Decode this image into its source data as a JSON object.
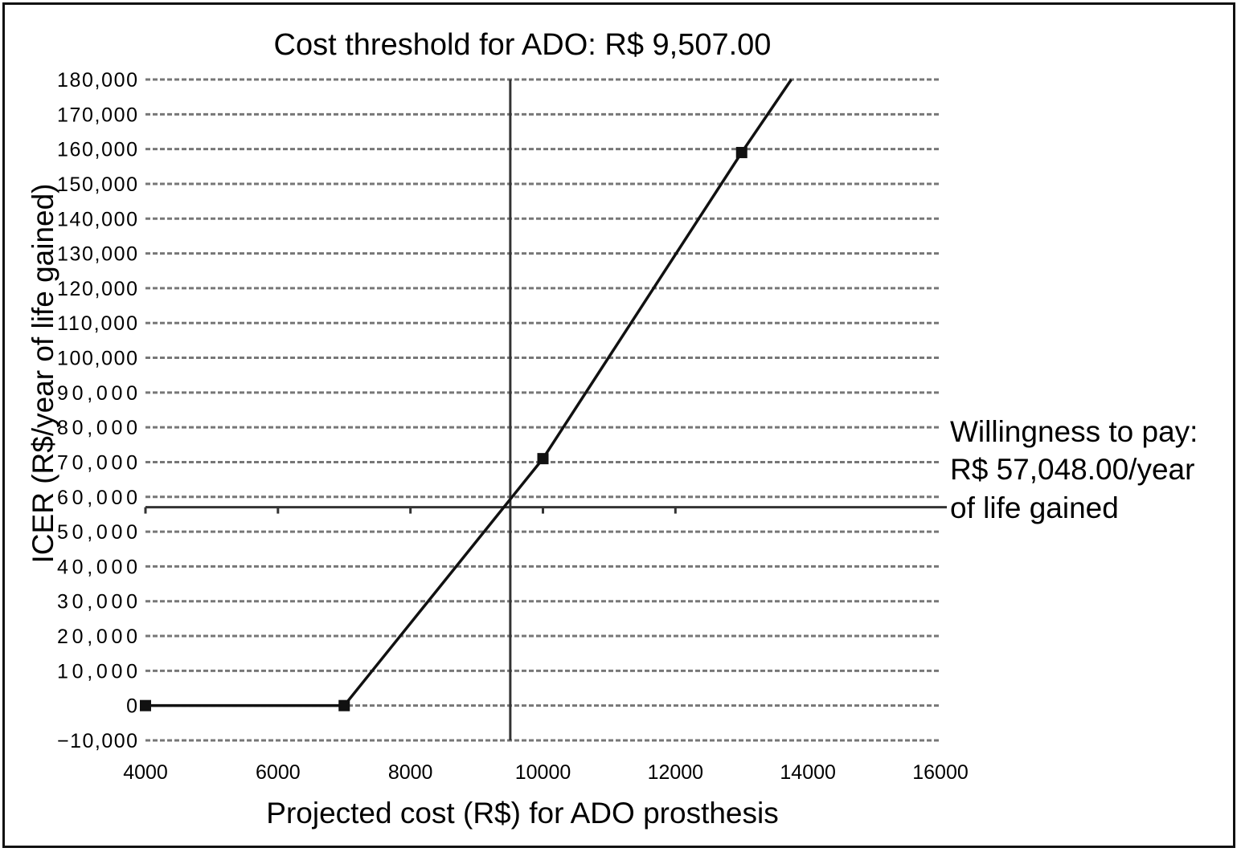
{
  "chart_data": {
    "type": "line",
    "title": "Cost threshold for ADO: R$ 9,507.00",
    "xlabel": "Projected cost (R$) for ADO prosthesis",
    "ylabel": "ICER (R$/year of life gained)",
    "xlim": [
      4000,
      16000
    ],
    "ylim": [
      -10000,
      180000
    ],
    "x_ticks": [
      "4000",
      "6000",
      "8000",
      "10000",
      "12000",
      "14000",
      "16000"
    ],
    "x_tick_values": [
      4000,
      6000,
      8000,
      10000,
      12000,
      14000,
      16000
    ],
    "y_ticks": [
      "180,000",
      "170,000",
      "160,000",
      "150,000",
      "140,000",
      "130,000",
      "120,000",
      "110,000",
      "100,000",
      "90,000",
      "80,000",
      "70,000",
      "60,000",
      "50,000",
      "40,000",
      "30,000",
      "20,000",
      "10,000",
      "0",
      "−10,000"
    ],
    "y_tick_values": [
      180000,
      170000,
      160000,
      150000,
      140000,
      130000,
      120000,
      110000,
      100000,
      90000,
      80000,
      70000,
      60000,
      50000,
      40000,
      30000,
      20000,
      10000,
      0,
      -10000
    ],
    "grid": "horizontal dashed",
    "series": [
      {
        "x": [
          4000,
          7000,
          10000,
          13000,
          13750
        ],
        "y": [
          0,
          0,
          71000,
          159000,
          180000
        ],
        "markers": [
          true,
          true,
          true,
          true,
          false
        ],
        "color": "#111111"
      }
    ],
    "reference_lines": {
      "cost_threshold_x": 9507,
      "willingness_to_pay_y": 57048
    },
    "annotation": {
      "lines": [
        "Willingness to pay:",
        "R$ 57,048.00/year",
        "of life gained"
      ]
    },
    "colors": {
      "line": "#111111",
      "grid": "#777777",
      "reference": "#333333"
    }
  }
}
